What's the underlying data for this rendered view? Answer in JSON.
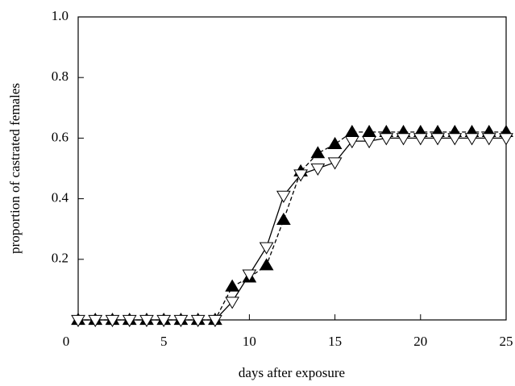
{
  "chart_data": {
    "type": "line",
    "xlabel": "days after exposure",
    "ylabel": "proportion of castrated females",
    "x": [
      0,
      1,
      2,
      3,
      4,
      5,
      6,
      7,
      8,
      9,
      10,
      11,
      12,
      13,
      14,
      15,
      16,
      17,
      18,
      19,
      20,
      21,
      22,
      23,
      24,
      25
    ],
    "series": [
      {
        "color": "#000000",
        "marker": "filled-triangle",
        "linestyle": "dashed",
        "values": [
          0,
          0,
          0,
          0,
          0,
          0,
          0,
          0,
          0,
          0.11,
          0.14,
          0.18,
          0.33,
          0.49,
          0.55,
          0.58,
          0.62,
          0.62,
          0.62,
          0.62,
          0.62,
          0.62,
          0.62,
          0.62,
          0.62,
          0.62
        ]
      },
      {
        "color": "#000000",
        "marker": "open-inverted-triangle",
        "linestyle": "solid",
        "values": [
          0,
          0,
          0,
          0,
          0,
          0,
          0,
          0,
          0,
          0.06,
          0.15,
          0.24,
          0.41,
          0.48,
          0.5,
          0.52,
          0.59,
          0.59,
          0.6,
          0.6,
          0.6,
          0.6,
          0.6,
          0.6,
          0.6,
          0.6
        ]
      }
    ],
    "xlim": [
      0,
      25
    ],
    "xticks": [
      0,
      5,
      10,
      15,
      20,
      25
    ],
    "ylim": [
      0,
      1
    ],
    "yticks": [
      0.2,
      0.4,
      0.6,
      0.8,
      {
        "value": 1,
        "label": "1.0"
      }
    ]
  }
}
